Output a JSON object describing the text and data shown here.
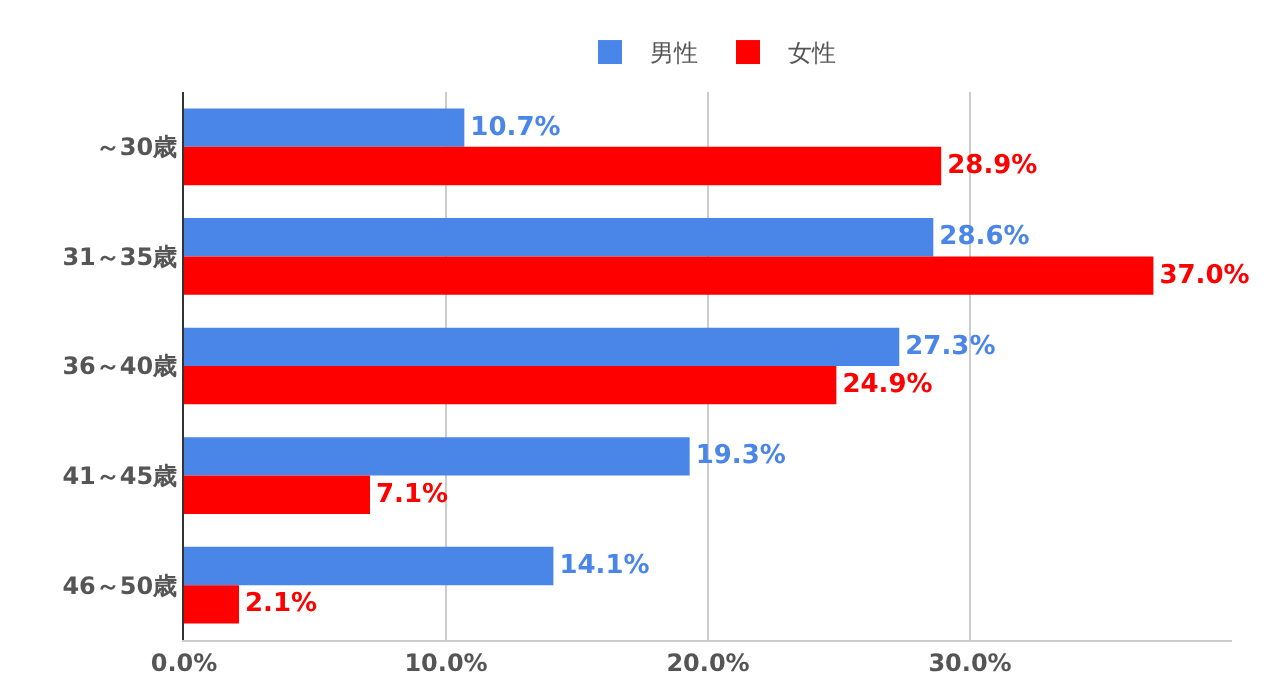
{
  "chart_data": {
    "type": "bar",
    "orientation": "horizontal",
    "categories": [
      "～30歳",
      "31～35歳",
      "36～40歳",
      "41～45歳",
      "46～50歳"
    ],
    "series": [
      {
        "name": "男性",
        "color": "#4a86e8",
        "values": [
          10.7,
          28.6,
          27.3,
          19.3,
          14.1
        ],
        "value_labels": [
          "10.7%",
          "28.6%",
          "27.3%",
          "19.3%",
          "14.1%"
        ]
      },
      {
        "name": "女性",
        "color": "#ff0000",
        "values": [
          28.9,
          37.0,
          24.9,
          7.1,
          2.1
        ],
        "value_labels": [
          "28.9%",
          "37.0%",
          "24.9%",
          "7.1%",
          "2.1%"
        ]
      }
    ],
    "xlim": [
      0,
      40
    ],
    "xticks": [
      {
        "value": 0,
        "label": "0.0%"
      },
      {
        "value": 10,
        "label": "10.0%"
      },
      {
        "value": 20,
        "label": "20.0%"
      },
      {
        "value": 30,
        "label": "30.0%"
      }
    ],
    "grid": "x",
    "legend": "top"
  }
}
